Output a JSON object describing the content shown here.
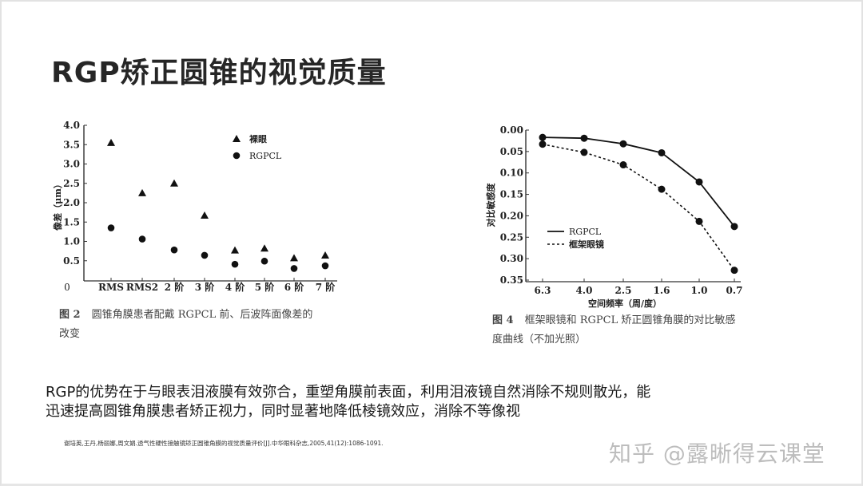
{
  "slide": {
    "title": "RGP矫正圆锥的视觉质量",
    "body_lines": [
      " RGP的优势在于与眼表泪液膜有效弥合，重塑角膜前表面，利用泪液镜自然消除不规则散光，能",
      "迅速提高圆锥角膜患者矫正视力，同时显著地降低棱镜效应，消除不等像视"
    ],
    "citation": "谢培英,王丹,杨丽娜,周文娟.透气性硬性接触镜矫正圆锥角膜的视觉质量评价[J].中华眼科杂志,2005,41(12):1086-1091.",
    "watermark": "知乎 @露晰得云课堂"
  },
  "figure2": {
    "caption_no": "图 2",
    "caption_line1": "圆锥角膜患者配戴 RGPCL 前、后波阵面像差的",
    "caption_line2": "改变"
  },
  "figure4": {
    "caption_no": "图 4",
    "caption_line1": "框架眼镜和 RGPCL 矫正圆锥角膜的对比敏感",
    "caption_line2": "度曲线（不加光照）"
  },
  "chart_data": [
    {
      "type": "scatter",
      "title": "",
      "xlabel": "",
      "ylabel": "像差（μm）",
      "categories": [
        "RMS",
        "RMS2",
        "2 阶",
        "3 阶",
        "4 阶",
        "5 阶",
        "6 阶",
        "7 阶"
      ],
      "yticks": [
        "0",
        "0.5",
        "1.0",
        "1.5",
        "2.0",
        "2.5",
        "3.0",
        "3.5",
        "4.0"
      ],
      "ylim": [
        0,
        4.0
      ],
      "grid": false,
      "legend_position": "top-right",
      "series": [
        {
          "name": "裸眼",
          "marker": "triangle",
          "values": [
            3.55,
            2.25,
            2.5,
            1.67,
            0.77,
            0.82,
            0.57,
            0.64
          ]
        },
        {
          "name": "RGPCL",
          "marker": "circle",
          "values": [
            1.35,
            1.06,
            0.78,
            0.64,
            0.41,
            0.49,
            0.3,
            0.37
          ]
        }
      ]
    },
    {
      "type": "line",
      "title": "",
      "xlabel": "空间频率（周/度）",
      "ylabel": "对比敏感度",
      "categories": [
        "6.3",
        "4.0",
        "2.5",
        "1.6",
        "1.0",
        "0.7"
      ],
      "yticks": [
        "0.00",
        "0.05",
        "0.10",
        "0.15",
        "0.20",
        "0.25",
        "0.30",
        "0.35"
      ],
      "ylim": [
        0.35,
        0.0
      ],
      "y_inverted": true,
      "grid": false,
      "legend_position": "lower-left",
      "series": [
        {
          "name": "RGPCL",
          "line_style": "solid",
          "values": [
            0.017,
            0.019,
            0.032,
            0.053,
            0.121,
            0.225
          ]
        },
        {
          "name": "框架眼镜",
          "line_style": "dashed",
          "values": [
            0.033,
            0.052,
            0.081,
            0.138,
            0.213,
            0.327
          ]
        }
      ]
    }
  ]
}
